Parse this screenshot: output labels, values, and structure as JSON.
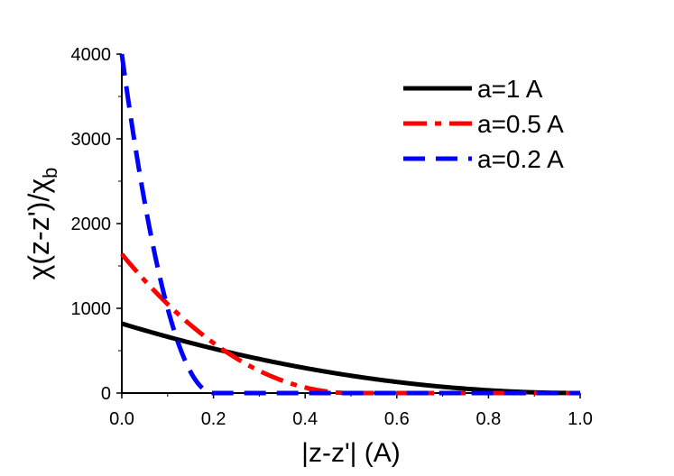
{
  "chart_data": {
    "type": "line",
    "xlabel": "|z-z'| (A)",
    "ylabel_main": "χ(z-z')/χ",
    "ylabel_sub": "b",
    "xlim": [
      0.0,
      1.0
    ],
    "ylim": [
      0,
      4000
    ],
    "xticks": [
      0.0,
      0.2,
      0.4,
      0.6,
      0.8,
      1.0
    ],
    "xtick_labels": [
      "0.0",
      "0.2",
      "0.4",
      "0.6",
      "0.8",
      "1.0"
    ],
    "yticks": [
      0,
      1000,
      2000,
      3000,
      4000
    ],
    "ytick_labels": [
      "0",
      "1000",
      "2000",
      "3000",
      "4000"
    ],
    "grid": false,
    "legend_position": "top-right",
    "series": [
      {
        "name": "a=1 A",
        "a": 1.0,
        "color": "#000000",
        "style": "solid",
        "x": [
          0.0,
          0.1,
          0.2,
          0.3,
          0.4,
          0.5,
          0.6,
          0.7,
          0.8,
          0.9,
          1.0
        ],
        "y": [
          820,
          664,
          525,
          402,
          295,
          205,
          131,
          74,
          33,
          8,
          0
        ]
      },
      {
        "name": "a=0.5 A",
        "a": 0.5,
        "color": "#ff0000",
        "style": "dash-dot",
        "x": [
          0.0,
          0.05,
          0.1,
          0.15,
          0.2,
          0.25,
          0.3,
          0.35,
          0.4,
          0.45,
          0.5,
          1.0
        ],
        "y": [
          1640,
          1328,
          1050,
          804,
          590,
          410,
          262,
          148,
          66,
          16,
          0,
          0
        ]
      },
      {
        "name": "a=0.2 A",
        "a": 0.2,
        "color": "#0000ff",
        "style": "dash",
        "x": [
          0.0,
          0.02,
          0.04,
          0.06,
          0.08,
          0.1,
          0.12,
          0.14,
          0.16,
          0.18,
          0.2,
          1.0
        ],
        "y": [
          4000,
          3240,
          2560,
          1960,
          1440,
          1000,
          640,
          360,
          160,
          40,
          0,
          0
        ]
      }
    ]
  }
}
